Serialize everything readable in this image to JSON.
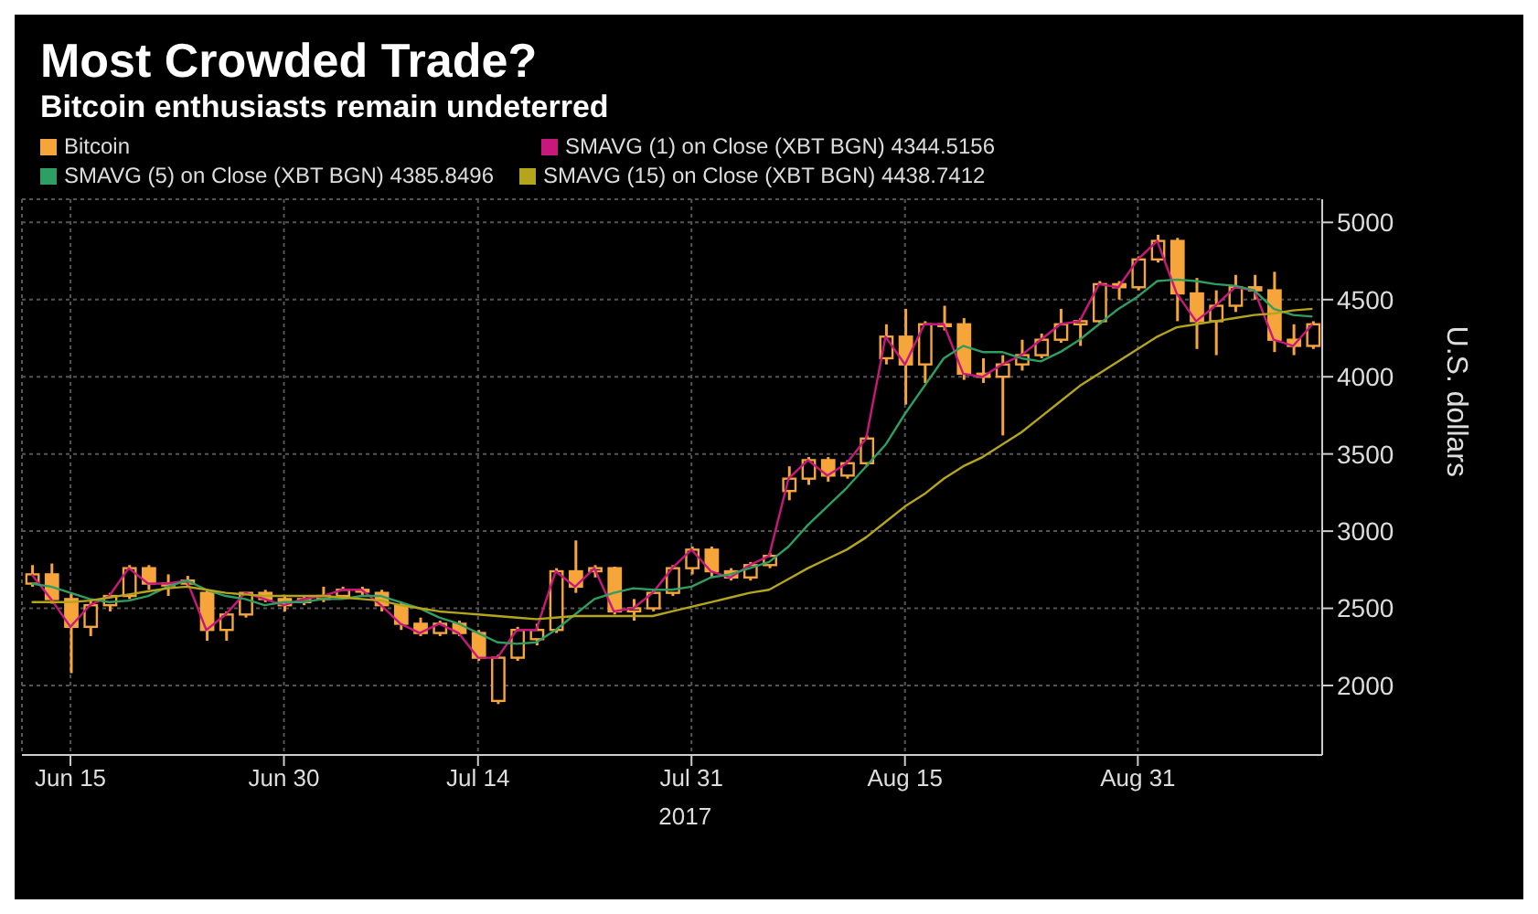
{
  "chart_data": {
    "type": "candlestick",
    "title": "Most Crowded Trade?",
    "subtitle": "Bitcoin enthusiasts remain undeterred",
    "ylabel": "U.S. dollars",
    "categories": [
      null,
      null,
      "Jun 15",
      null,
      null,
      null,
      null,
      null,
      null,
      null,
      null,
      null,
      null,
      "Jun 30",
      null,
      null,
      null,
      null,
      null,
      null,
      null,
      null,
      null,
      "Jul 14",
      null,
      null,
      null,
      null,
      null,
      null,
      null,
      null,
      null,
      null,
      "Jul 31",
      null,
      null,
      null,
      null,
      null,
      null,
      null,
      null,
      null,
      null,
      "Aug 15",
      null,
      null,
      null,
      null,
      null,
      null,
      null,
      null,
      null,
      null,
      null,
      "Aug 31",
      null,
      null,
      null,
      null,
      null,
      null,
      null,
      null,
      null
    ],
    "ylim": [
      1550,
      5150
    ],
    "yticks": [
      2000,
      2500,
      3000,
      3500,
      4000,
      4500,
      5000
    ],
    "grid": true,
    "legend": "top left",
    "annotations": [
      "2017"
    ],
    "series": [
      {
        "name": "Bitcoin",
        "type": "candlestick",
        "color": "#f5a53a",
        "ohlc": [
          [
            2660,
            2780,
            2640,
            2720
          ],
          [
            2720,
            2790,
            2530,
            2560
          ],
          [
            2560,
            2600,
            2080,
            2380
          ],
          [
            2380,
            2550,
            2320,
            2520
          ],
          [
            2520,
            2600,
            2480,
            2580
          ],
          [
            2580,
            2780,
            2560,
            2760
          ],
          [
            2760,
            2780,
            2620,
            2660
          ],
          [
            2660,
            2720,
            2580,
            2660
          ],
          [
            2660,
            2710,
            2640,
            2680
          ],
          [
            2600,
            2620,
            2290,
            2360
          ],
          [
            2360,
            2480,
            2290,
            2460
          ],
          [
            2460,
            2600,
            2440,
            2600
          ],
          [
            2600,
            2620,
            2540,
            2560
          ],
          [
            2560,
            2580,
            2480,
            2520
          ],
          [
            2540,
            2580,
            2520,
            2560
          ],
          [
            2560,
            2640,
            2540,
            2580
          ],
          [
            2580,
            2640,
            2560,
            2620
          ],
          [
            2620,
            2640,
            2580,
            2620
          ],
          [
            2600,
            2620,
            2480,
            2520
          ],
          [
            2520,
            2540,
            2360,
            2400
          ],
          [
            2400,
            2440,
            2320,
            2340
          ],
          [
            2340,
            2420,
            2320,
            2400
          ],
          [
            2400,
            2420,
            2320,
            2340
          ],
          [
            2340,
            2360,
            2160,
            2180
          ],
          [
            1900,
            2200,
            1880,
            2180
          ],
          [
            2180,
            2380,
            2160,
            2360
          ],
          [
            2300,
            2400,
            2260,
            2360
          ],
          [
            2360,
            2760,
            2340,
            2740
          ],
          [
            2740,
            2940,
            2600,
            2640
          ],
          [
            2740,
            2780,
            2700,
            2760
          ],
          [
            2760,
            2770,
            2460,
            2480
          ],
          [
            2480,
            2560,
            2420,
            2500
          ],
          [
            2500,
            2620,
            2480,
            2600
          ],
          [
            2600,
            2780,
            2580,
            2760
          ],
          [
            2760,
            2900,
            2720,
            2880
          ],
          [
            2880,
            2900,
            2700,
            2740
          ],
          [
            2740,
            2760,
            2680,
            2700
          ],
          [
            2700,
            2800,
            2680,
            2780
          ],
          [
            2780,
            2860,
            2760,
            2840
          ],
          [
            3260,
            3420,
            3200,
            3340
          ],
          [
            3340,
            3480,
            3300,
            3460
          ],
          [
            3460,
            3480,
            3320,
            3360
          ],
          [
            3360,
            3460,
            3340,
            3440
          ],
          [
            3440,
            3620,
            3420,
            3600
          ],
          [
            4120,
            4340,
            4080,
            4260
          ],
          [
            4260,
            4440,
            3820,
            4080
          ],
          [
            4080,
            4360,
            3960,
            4340
          ],
          [
            4340,
            4460,
            4300,
            4340
          ],
          [
            4340,
            4380,
            3980,
            4020
          ],
          [
            4020,
            4120,
            3960,
            4000
          ],
          [
            4000,
            4140,
            3620,
            4080
          ],
          [
            4080,
            4240,
            4040,
            4140
          ],
          [
            4140,
            4280,
            4120,
            4240
          ],
          [
            4240,
            4440,
            4220,
            4340
          ],
          [
            4340,
            4380,
            4200,
            4360
          ],
          [
            4360,
            4620,
            4340,
            4600
          ],
          [
            4600,
            4620,
            4500,
            4580
          ],
          [
            4580,
            4780,
            4560,
            4760
          ],
          [
            4760,
            4920,
            4740,
            4880
          ],
          [
            4880,
            4900,
            4360,
            4540
          ],
          [
            4540,
            4640,
            4180,
            4360
          ],
          [
            4360,
            4560,
            4140,
            4460
          ],
          [
            4460,
            4660,
            4420,
            4580
          ],
          [
            4580,
            4660,
            4500,
            4560
          ],
          [
            4560,
            4680,
            4160,
            4240
          ],
          [
            4240,
            4340,
            4140,
            4200
          ],
          [
            4200,
            4360,
            4180,
            4340
          ]
        ]
      },
      {
        "name": "SMAVG (1) on Close (XBT BGN) 4344.5156",
        "type": "line",
        "color": "#c8187e",
        "values": [
          2720,
          2560,
          2380,
          2520,
          2580,
          2760,
          2660,
          2660,
          2680,
          2360,
          2460,
          2600,
          2560,
          2520,
          2560,
          2580,
          2620,
          2620,
          2520,
          2400,
          2340,
          2400,
          2340,
          2180,
          2180,
          2360,
          2360,
          2740,
          2640,
          2760,
          2480,
          2500,
          2600,
          2760,
          2880,
          2740,
          2700,
          2780,
          2840,
          3340,
          3460,
          3360,
          3440,
          3600,
          4260,
          4080,
          4340,
          4340,
          4020,
          4000,
          4080,
          4140,
          4240,
          4340,
          4360,
          4600,
          4580,
          4760,
          4880,
          4540,
          4360,
          4460,
          4580,
          4560,
          4240,
          4200,
          4340
        ]
      },
      {
        "name": "SMAVG (5) on Close (XBT BGN) 4385.8496",
        "type": "line",
        "color": "#2e9e63",
        "values": [
          2660,
          2640,
          2600,
          2560,
          2540,
          2550,
          2580,
          2640,
          2680,
          2620,
          2580,
          2560,
          2520,
          2540,
          2540,
          2560,
          2560,
          2580,
          2580,
          2540,
          2500,
          2440,
          2400,
          2340,
          2280,
          2270,
          2280,
          2360,
          2460,
          2560,
          2600,
          2630,
          2620,
          2620,
          2640,
          2700,
          2720,
          2760,
          2800,
          2900,
          3040,
          3160,
          3280,
          3420,
          3560,
          3760,
          3940,
          4120,
          4200,
          4160,
          4160,
          4120,
          4100,
          4160,
          4240,
          4340,
          4440,
          4520,
          4620,
          4630,
          4620,
          4600,
          4590,
          4560,
          4440,
          4400,
          4390
        ]
      },
      {
        "name": "SMAVG (15) on Close (XBT BGN) 4438.7412",
        "type": "line",
        "color": "#b5a51c",
        "values": [
          2540,
          2540,
          2540,
          2550,
          2570,
          2590,
          2610,
          2630,
          2640,
          2620,
          2600,
          2590,
          2580,
          2580,
          2580,
          2580,
          2570,
          2560,
          2550,
          2520,
          2500,
          2480,
          2470,
          2460,
          2450,
          2440,
          2430,
          2440,
          2450,
          2450,
          2450,
          2450,
          2450,
          2480,
          2510,
          2540,
          2570,
          2600,
          2620,
          2690,
          2760,
          2820,
          2880,
          2960,
          3060,
          3160,
          3240,
          3340,
          3420,
          3480,
          3560,
          3640,
          3740,
          3840,
          3940,
          4020,
          4100,
          4180,
          4260,
          4320,
          4340,
          4360,
          4380,
          4400,
          4410,
          4430,
          4440
        ]
      }
    ]
  }
}
